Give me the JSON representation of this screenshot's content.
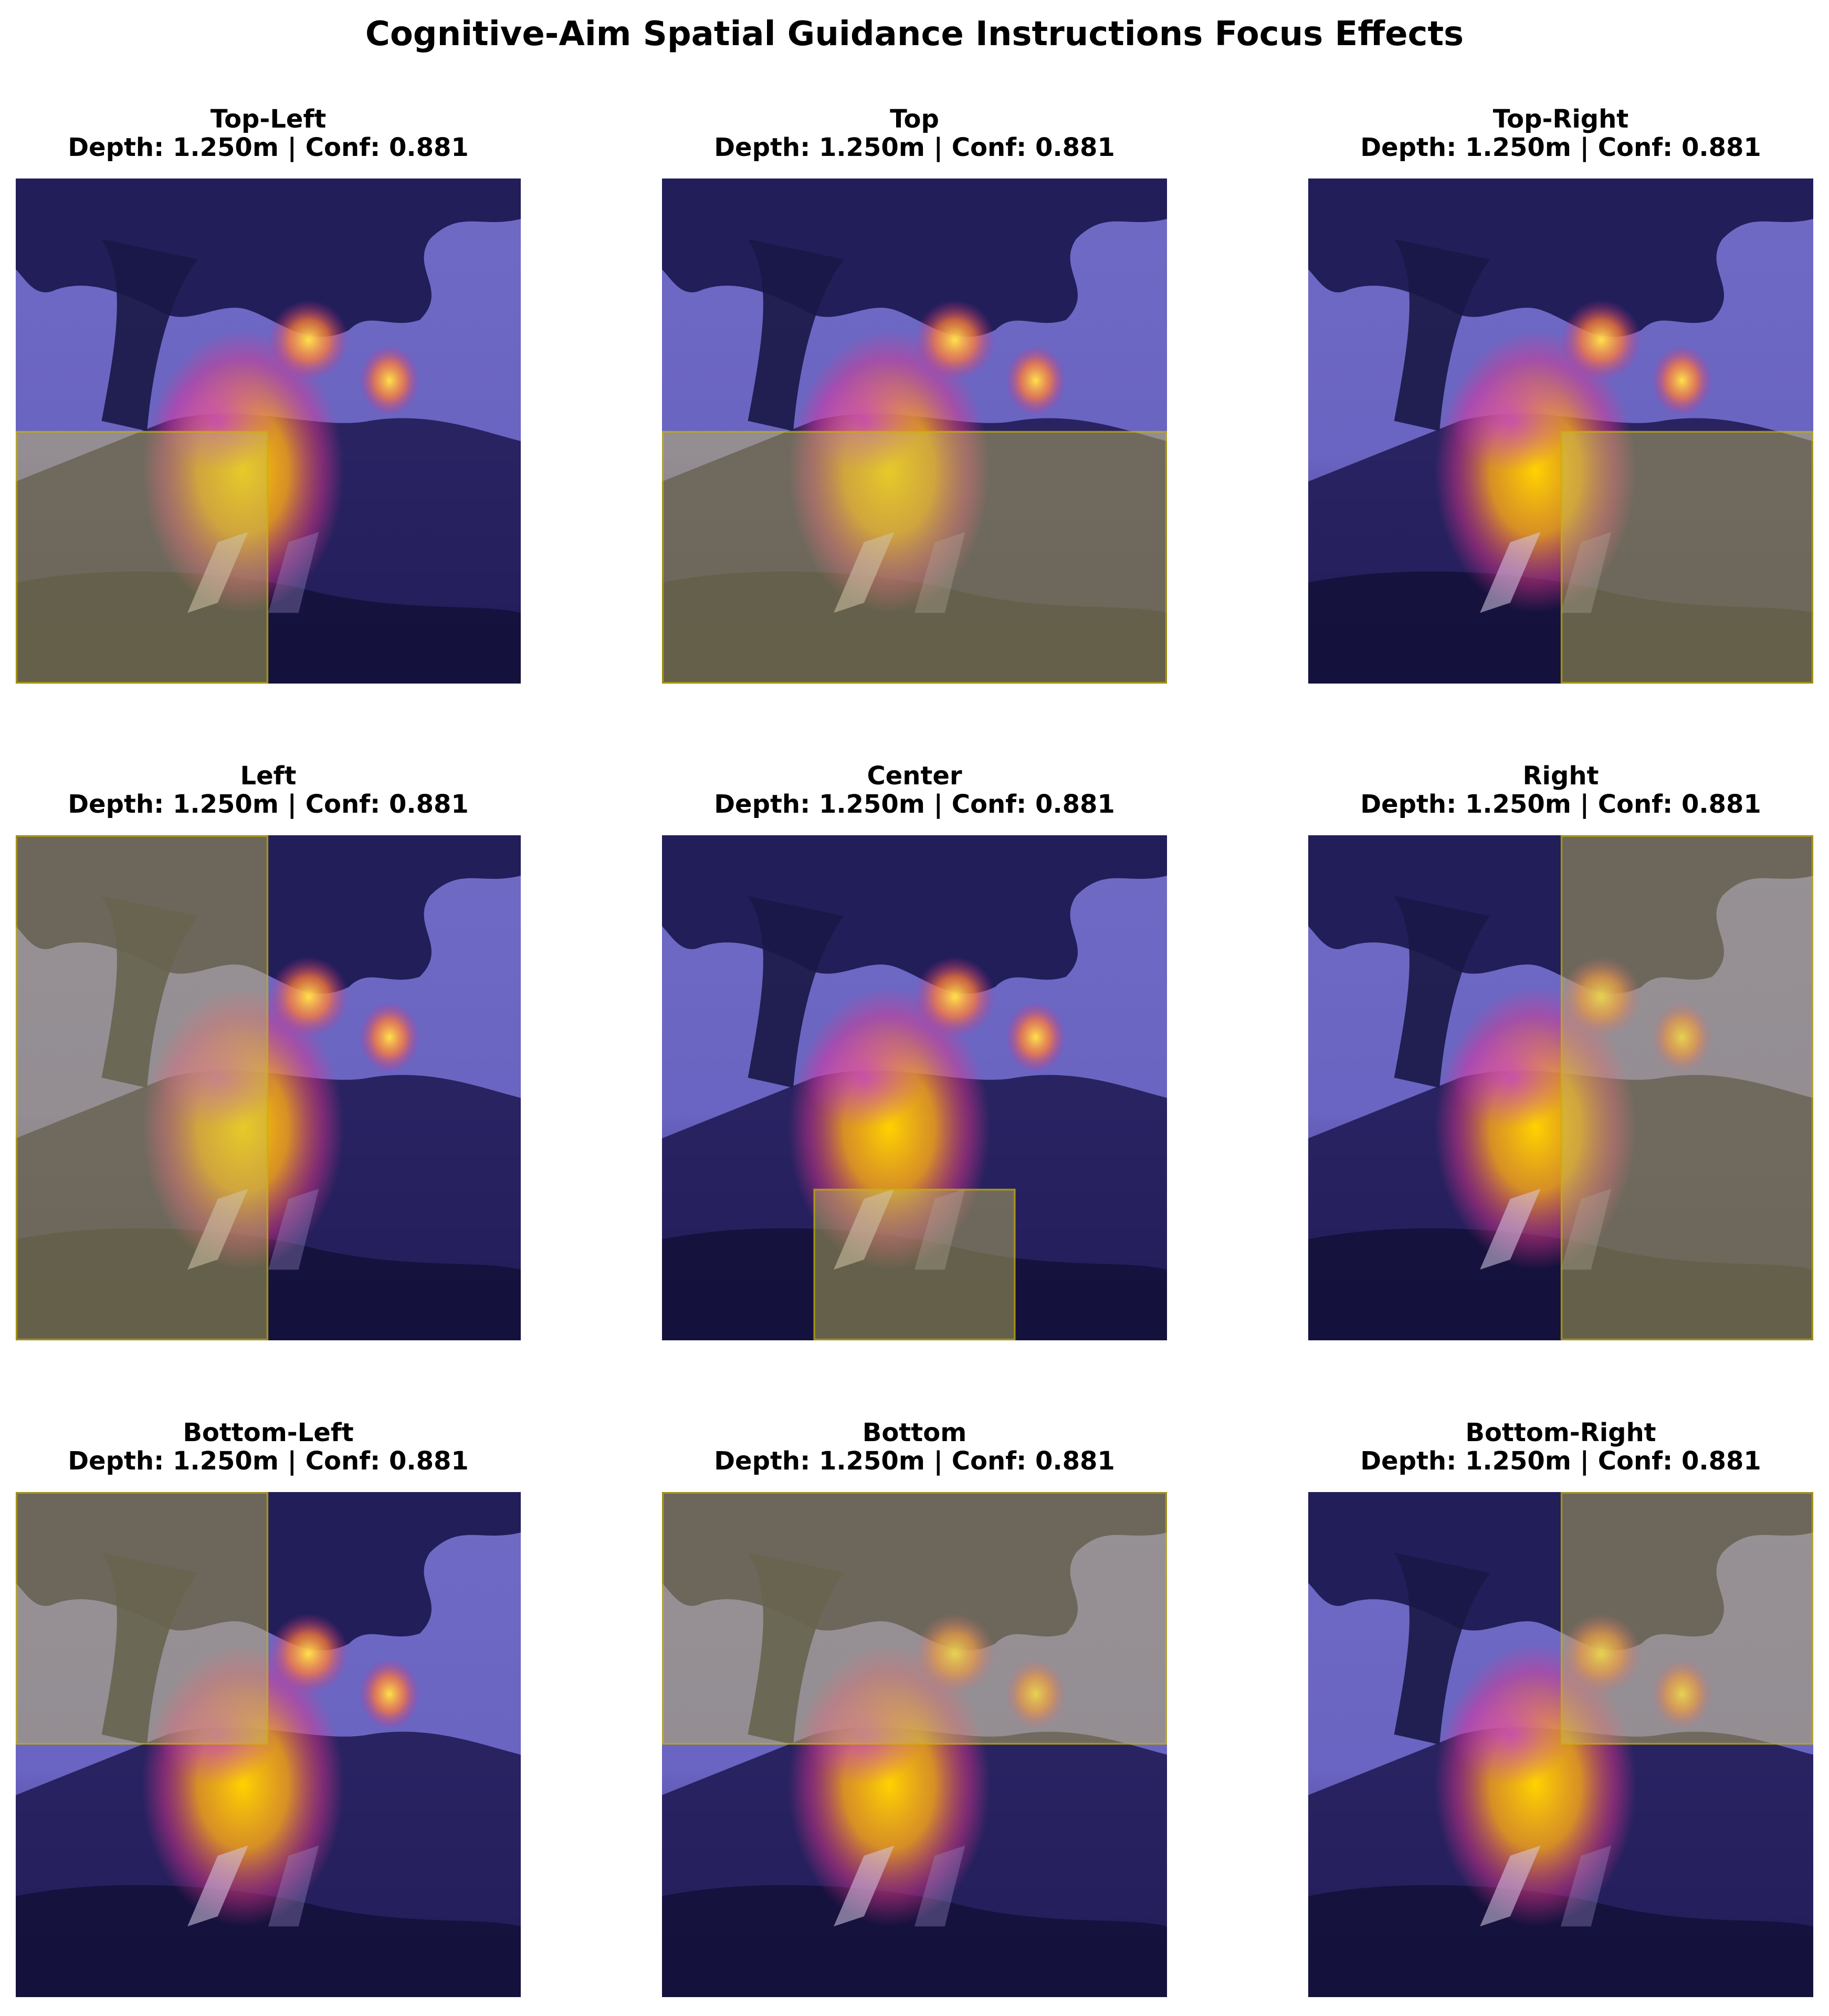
{
  "title": "Cognitive-Aim Spatial Guidance Instructions Focus Effects",
  "colors": {
    "overlay_fill": "#c8c25a",
    "overlay_edge": "#c8b400",
    "heat_hot": "#ffd200",
    "heat_mid": "#e2348c",
    "sky": "#6f6bc4",
    "foliage": "#1b1850"
  },
  "panels": [
    {
      "label": "Top-Left",
      "caption": "Depth: 1.250m | Conf: 0.881"
    },
    {
      "label": "Top",
      "caption": "Depth: 1.250m | Conf: 0.881"
    },
    {
      "label": "Top-Right",
      "caption": "Depth: 1.250m | Conf: 0.881"
    },
    {
      "label": "Left",
      "caption": "Depth: 1.250m | Conf: 0.881"
    },
    {
      "label": "Center",
      "caption": "Depth: 1.250m | Conf: 0.881"
    },
    {
      "label": "Right",
      "caption": "Depth: 1.250m | Conf: 0.881"
    },
    {
      "label": "Bottom-Left",
      "caption": "Depth: 1.250m | Conf: 0.881"
    },
    {
      "label": "Bottom",
      "caption": "Depth: 1.250m | Conf: 0.881"
    },
    {
      "label": "Bottom-Right",
      "caption": "Depth: 1.250m | Conf: 0.881"
    }
  ]
}
